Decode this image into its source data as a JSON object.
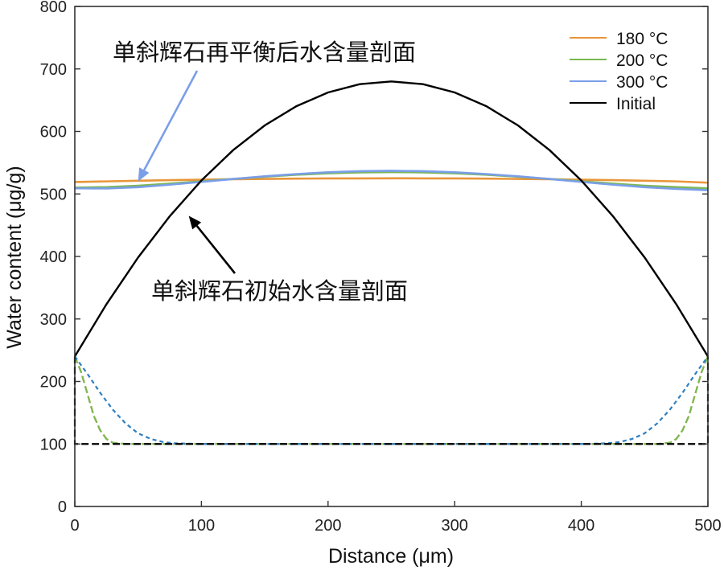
{
  "chart_data": {
    "type": "line",
    "xlabel": "Distance (μm)",
    "ylabel": "Water content (μg/g)",
    "xlim": [
      0,
      500
    ],
    "ylim": [
      0,
      800
    ],
    "xticks": [
      0,
      100,
      200,
      300,
      400,
      500
    ],
    "yticks": [
      0,
      100,
      200,
      300,
      400,
      500,
      600,
      700,
      800
    ],
    "grid": false,
    "legend_placement": "top-right",
    "legend": [
      {
        "label": "180 °C",
        "color": "#e8963a"
      },
      {
        "label": "200 °C",
        "color": "#7ab852"
      },
      {
        "label": "300 °C",
        "color": "#7b9ee8"
      },
      {
        "label": "Initial",
        "color": "#000000"
      }
    ],
    "x": [
      0,
      25,
      50,
      75,
      100,
      125,
      150,
      175,
      200,
      225,
      250,
      275,
      300,
      325,
      350,
      375,
      400,
      425,
      450,
      475,
      500
    ],
    "series": [
      {
        "name": "180 °C",
        "color": "#e8963a",
        "style": "solid",
        "values": [
          519,
          520.1,
          521.2,
          522.1,
          522.8,
          523.5,
          524.0,
          524.5,
          524.8,
          524.9,
          525,
          524.9,
          524.8,
          524.5,
          524.0,
          523.5,
          522.8,
          522.1,
          521.2,
          520.1,
          518
        ]
      },
      {
        "name": "200 °C",
        "color": "#7ab852",
        "style": "solid",
        "values": [
          510,
          510.9,
          513.2,
          516.5,
          520.2,
          524.1,
          527.6,
          530.7,
          533.0,
          534.5,
          535,
          534.5,
          533.0,
          530.7,
          527.6,
          524.1,
          520.2,
          516.5,
          513.2,
          510.9,
          509
        ]
      },
      {
        "name": "300 °C",
        "color": "#7b9ee8",
        "style": "solid",
        "values": [
          509,
          508.8,
          510.9,
          514.8,
          519.3,
          523.9,
          528.2,
          531.8,
          534.7,
          536.4,
          537,
          536.4,
          534.7,
          531.8,
          528.2,
          523.9,
          519.3,
          514.8,
          510.9,
          508.1,
          506
        ]
      },
      {
        "name": "Initial",
        "color": "#000000",
        "style": "solid",
        "values": [
          240,
          323.6,
          398.4,
          464.4,
          521.6,
          570,
          609.6,
          640.4,
          662.4,
          675.6,
          680,
          675.6,
          662.4,
          640.4,
          609.6,
          570,
          521.6,
          464.4,
          398.4,
          323.6,
          240
        ]
      }
    ],
    "dashed_series": [
      {
        "color": "#e8963a",
        "style": "dashed",
        "x": [
          0,
          5,
          10,
          15,
          20,
          25,
          30,
          40,
          250,
          460,
          470,
          475,
          480,
          485,
          490,
          495,
          500
        ],
        "values": [
          240,
          215,
          180,
          145,
          122,
          108,
          102,
          100,
          100,
          100,
          102,
          108,
          122,
          145,
          180,
          215,
          240
        ]
      },
      {
        "color": "#7ab852",
        "style": "dashed",
        "x": [
          0,
          5,
          10,
          15,
          20,
          25,
          30,
          40,
          250,
          460,
          470,
          475,
          480,
          485,
          490,
          495,
          500
        ],
        "values": [
          240,
          215,
          180,
          145,
          122,
          108,
          102,
          100,
          100,
          100,
          102,
          108,
          122,
          145,
          180,
          215,
          240
        ]
      },
      {
        "color": "#2f7fc0",
        "style": "dotted",
        "x": [
          0,
          10,
          20,
          30,
          40,
          50,
          60,
          70,
          80,
          100,
          250,
          400,
          420,
          430,
          440,
          450,
          460,
          470,
          480,
          490,
          500
        ],
        "values": [
          240,
          212,
          182,
          155,
          133,
          117,
          108,
          103,
          101,
          100,
          100,
          100,
          101,
          103,
          108,
          117,
          133,
          155,
          182,
          212,
          240
        ]
      },
      {
        "color": "#000000",
        "style": "dashed",
        "x": [
          0,
          0,
          500,
          500
        ],
        "values": [
          240,
          100,
          100,
          240
        ]
      }
    ],
    "annotations": [
      {
        "text": "单斜辉石再平衡后水含量剖面",
        "color": "#7b9ee8",
        "arrow_to": [
          50,
          520
        ]
      },
      {
        "text": "单斜辉石初始水含量剖面",
        "color": "#000000",
        "arrow_to": [
          90,
          465
        ]
      }
    ]
  }
}
